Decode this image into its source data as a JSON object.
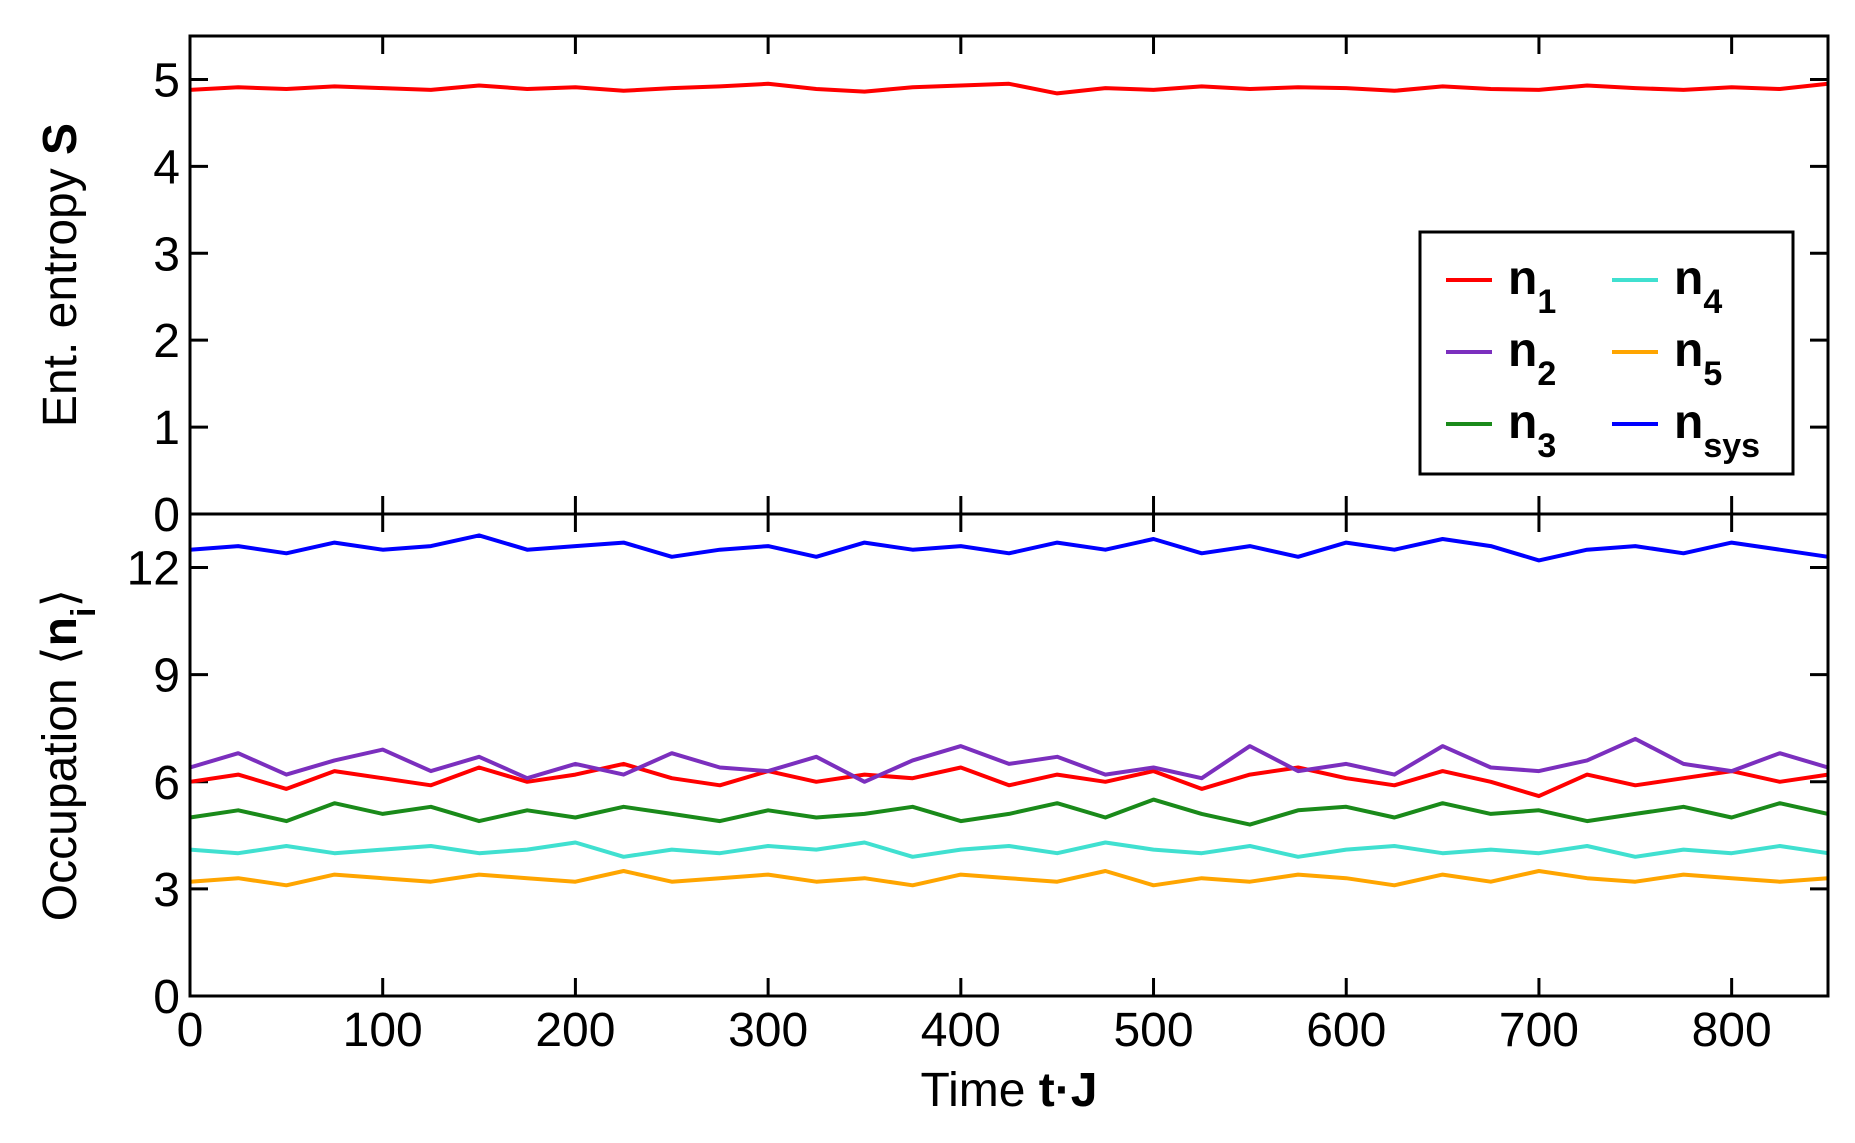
{
  "chart_data": [
    {
      "type": "line",
      "ylabel": [
        {
          "text": "Ent. entropy "
        },
        {
          "text": "S",
          "style": "bold"
        }
      ],
      "x": [
        0,
        25,
        50,
        75,
        100,
        125,
        150,
        175,
        200,
        225,
        250,
        275,
        300,
        325,
        350,
        375,
        400,
        425,
        450,
        475,
        500,
        525,
        550,
        575,
        600,
        625,
        650,
        675,
        700,
        725,
        750,
        775,
        800,
        825,
        850
      ],
      "series": [
        {
          "name": "S",
          "color": "#ff0000",
          "values": [
            4.88,
            4.91,
            4.89,
            4.92,
            4.9,
            4.88,
            4.93,
            4.89,
            4.91,
            4.87,
            4.9,
            4.92,
            4.95,
            4.89,
            4.86,
            4.91,
            4.93,
            4.95,
            4.84,
            4.9,
            4.88,
            4.92,
            4.89,
            4.91,
            4.9,
            4.87,
            4.92,
            4.89,
            4.88,
            4.93,
            4.9,
            4.88,
            4.91,
            4.89,
            4.95
          ]
        }
      ],
      "xlim": [
        0,
        850
      ],
      "xticks": [
        0,
        100,
        200,
        300,
        400,
        500,
        600,
        700,
        800
      ],
      "ylim": [
        0,
        5.5
      ],
      "yticks": [
        0,
        1,
        2,
        3,
        4,
        5
      ]
    },
    {
      "type": "line",
      "ylabel": [
        {
          "text": "Occupation ⟨"
        },
        {
          "text": "n",
          "style": "bold"
        },
        {
          "text": "i",
          "style": "sub"
        },
        {
          "text": "⟩"
        }
      ],
      "xlabel": [
        {
          "text": "Time "
        },
        {
          "text": "t·J",
          "style": "bold"
        }
      ],
      "x": [
        0,
        25,
        50,
        75,
        100,
        125,
        150,
        175,
        200,
        225,
        250,
        275,
        300,
        325,
        350,
        375,
        400,
        425,
        450,
        475,
        500,
        525,
        550,
        575,
        600,
        625,
        650,
        675,
        700,
        725,
        750,
        775,
        800,
        825,
        850
      ],
      "series": [
        {
          "name": "n",
          "subscript": "1",
          "color": "#ff0000",
          "values": [
            6.0,
            6.2,
            5.8,
            6.3,
            6.1,
            5.9,
            6.4,
            6.0,
            6.2,
            6.5,
            6.1,
            5.9,
            6.3,
            6.0,
            6.2,
            6.1,
            6.4,
            5.9,
            6.2,
            6.0,
            6.3,
            5.8,
            6.2,
            6.4,
            6.1,
            5.9,
            6.3,
            6.0,
            5.6,
            6.2,
            5.9,
            6.1,
            6.3,
            6.0,
            6.2
          ]
        },
        {
          "name": "n",
          "subscript": "2",
          "color": "#7b2fbe",
          "values": [
            6.4,
            6.8,
            6.2,
            6.6,
            6.9,
            6.3,
            6.7,
            6.1,
            6.5,
            6.2,
            6.8,
            6.4,
            6.3,
            6.7,
            6.0,
            6.6,
            7.0,
            6.5,
            6.7,
            6.2,
            6.4,
            6.1,
            7.0,
            6.3,
            6.5,
            6.2,
            7.0,
            6.4,
            6.3,
            6.6,
            7.2,
            6.5,
            6.3,
            6.8,
            6.4
          ]
        },
        {
          "name": "n",
          "subscript": "3",
          "color": "#1a8a1a",
          "values": [
            5.0,
            5.2,
            4.9,
            5.4,
            5.1,
            5.3,
            4.9,
            5.2,
            5.0,
            5.3,
            5.1,
            4.9,
            5.2,
            5.0,
            5.1,
            5.3,
            4.9,
            5.1,
            5.4,
            5.0,
            5.5,
            5.1,
            4.8,
            5.2,
            5.3,
            5.0,
            5.4,
            5.1,
            5.2,
            4.9,
            5.1,
            5.3,
            5.0,
            5.4,
            5.1
          ]
        },
        {
          "name": "n",
          "subscript": "4",
          "color": "#40e0d0",
          "values": [
            4.1,
            4.0,
            4.2,
            4.0,
            4.1,
            4.2,
            4.0,
            4.1,
            4.3,
            3.9,
            4.1,
            4.0,
            4.2,
            4.1,
            4.3,
            3.9,
            4.1,
            4.2,
            4.0,
            4.3,
            4.1,
            4.0,
            4.2,
            3.9,
            4.1,
            4.2,
            4.0,
            4.1,
            4.0,
            4.2,
            3.9,
            4.1,
            4.0,
            4.2,
            4.0
          ]
        },
        {
          "name": "n",
          "subscript": "5",
          "color": "#ffa500",
          "values": [
            3.2,
            3.3,
            3.1,
            3.4,
            3.3,
            3.2,
            3.4,
            3.3,
            3.2,
            3.5,
            3.2,
            3.3,
            3.4,
            3.2,
            3.3,
            3.1,
            3.4,
            3.3,
            3.2,
            3.5,
            3.1,
            3.3,
            3.2,
            3.4,
            3.3,
            3.1,
            3.4,
            3.2,
            3.5,
            3.3,
            3.2,
            3.4,
            3.3,
            3.2,
            3.3
          ]
        },
        {
          "name": "n",
          "subscript": "sys",
          "color": "#0000ff",
          "values": [
            12.5,
            12.6,
            12.4,
            12.7,
            12.5,
            12.6,
            12.9,
            12.5,
            12.6,
            12.7,
            12.3,
            12.5,
            12.6,
            12.3,
            12.7,
            12.5,
            12.6,
            12.4,
            12.7,
            12.5,
            12.8,
            12.4,
            12.6,
            12.3,
            12.7,
            12.5,
            12.8,
            12.6,
            12.2,
            12.5,
            12.6,
            12.4,
            12.7,
            12.5,
            12.3
          ]
        }
      ],
      "xlim": [
        0,
        850
      ],
      "xticks": [
        0,
        100,
        200,
        300,
        400,
        500,
        600,
        700,
        800
      ],
      "ylim": [
        0,
        13.5
      ],
      "yticks": [
        0,
        3,
        6,
        9,
        12
      ]
    }
  ]
}
